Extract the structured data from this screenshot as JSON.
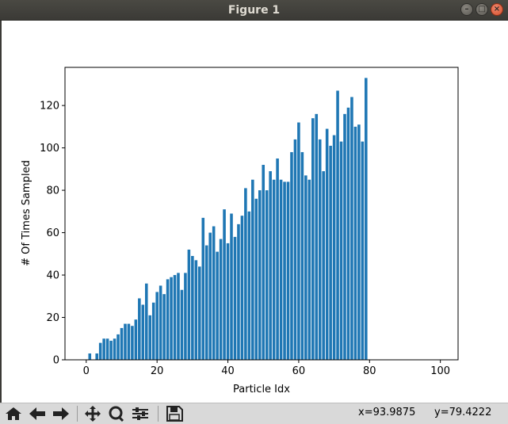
{
  "window": {
    "title": "Figure 1",
    "buttons": [
      "minimize-icon",
      "maximize-icon",
      "close-icon"
    ]
  },
  "toolbar": {
    "buttons": [
      {
        "name": "home-button",
        "icon": "home-icon"
      },
      {
        "name": "back-button",
        "icon": "arrow-left-icon"
      },
      {
        "name": "forward-button",
        "icon": "arrow-right-icon"
      },
      {
        "name": "pan-button",
        "icon": "move-icon"
      },
      {
        "name": "zoom-button",
        "icon": "magnifier-icon"
      },
      {
        "name": "configure-subplots-button",
        "icon": "sliders-icon"
      },
      {
        "name": "save-button",
        "icon": "floppy-disk-icon"
      }
    ],
    "coord_x": "x=93.9875",
    "coord_y": "y=79.4222"
  },
  "chart_data": {
    "type": "bar",
    "title": "",
    "xlabel": "Particle Idx",
    "ylabel": "# Of Times Sampled",
    "xlim": [
      -6,
      105
    ],
    "ylim": [
      0,
      138
    ],
    "xticks": [
      0,
      20,
      40,
      60,
      80,
      100
    ],
    "yticks": [
      0,
      20,
      40,
      60,
      80,
      100,
      120
    ],
    "grid": false,
    "color": "#1f77b4",
    "x": [
      0,
      1,
      2,
      3,
      4,
      5,
      6,
      7,
      8,
      9,
      10,
      11,
      12,
      13,
      14,
      15,
      16,
      17,
      18,
      19,
      20,
      21,
      22,
      23,
      24,
      25,
      26,
      27,
      28,
      29,
      30,
      31,
      32,
      33,
      34,
      35,
      36,
      37,
      38,
      39,
      40,
      41,
      42,
      43,
      44,
      45,
      46,
      47,
      48,
      49,
      50,
      51,
      52,
      53,
      54,
      55,
      56,
      57,
      58,
      59,
      60,
      61,
      62,
      63,
      64,
      65,
      66,
      67,
      68,
      69,
      70,
      71,
      72,
      73,
      74,
      75,
      76,
      77,
      78,
      79
    ],
    "values": [
      0,
      3,
      0,
      3,
      8,
      10,
      10,
      9,
      10,
      12,
      15,
      17,
      17,
      16,
      19,
      29,
      26,
      36,
      21,
      27,
      32,
      35,
      31,
      38,
      39,
      40,
      41,
      33,
      41,
      52,
      49,
      47,
      44,
      67,
      54,
      60,
      63,
      51,
      57,
      71,
      55,
      69,
      58,
      64,
      68,
      81,
      70,
      85,
      76,
      80,
      92,
      80,
      89,
      85,
      95,
      85,
      84,
      84,
      98,
      104,
      112,
      98,
      87,
      85,
      114,
      116,
      104,
      89,
      109,
      101,
      106,
      127,
      103,
      116,
      119,
      124,
      110,
      111,
      103,
      133
    ]
  }
}
